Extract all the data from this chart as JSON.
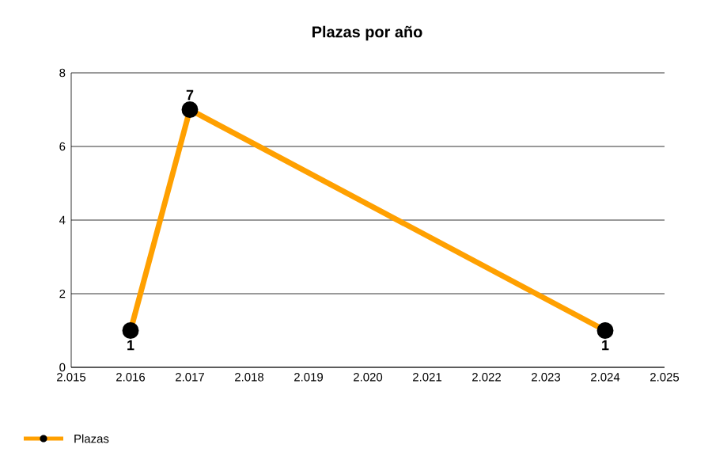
{
  "chart_data": {
    "type": "line",
    "title": "Plazas por año",
    "x": [
      2016,
      2017,
      2024
    ],
    "series": [
      {
        "name": "Plazas",
        "color": "#ffa000",
        "values": [
          1,
          7,
          1
        ]
      }
    ],
    "xlim": [
      2015,
      2025
    ],
    "xticks": [
      {
        "value": 2015,
        "label": "2.015"
      },
      {
        "value": 2016,
        "label": "2.016"
      },
      {
        "value": 2017,
        "label": "2.017"
      },
      {
        "value": 2018,
        "label": "2.018"
      },
      {
        "value": 2019,
        "label": "2.019"
      },
      {
        "value": 2020,
        "label": "2.020"
      },
      {
        "value": 2021,
        "label": "2.021"
      },
      {
        "value": 2022,
        "label": "2.022"
      },
      {
        "value": 2023,
        "label": "2.023"
      },
      {
        "value": 2024,
        "label": "2.024"
      },
      {
        "value": 2025,
        "label": "2.025"
      }
    ],
    "ylim": [
      0,
      8
    ],
    "yticks": [
      0,
      2,
      4,
      6,
      8
    ],
    "grid": "y",
    "legend": "bottom left",
    "marker": "circle",
    "line_style": "solid",
    "data_labels": true
  }
}
